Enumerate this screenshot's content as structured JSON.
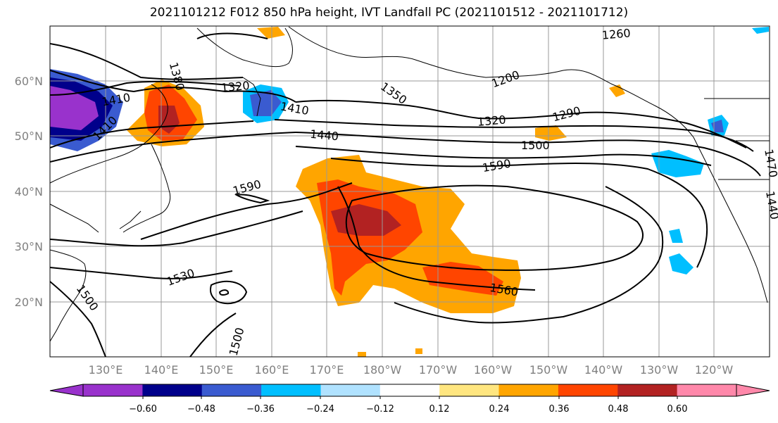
{
  "title": "2021101212 F012 850 hPa height, IVT Landfall PC (2021101512 - 2021101712)",
  "map": {
    "lat_labels": [
      "60°N",
      "50°N",
      "40°N",
      "30°N",
      "20°N"
    ],
    "lon_labels": [
      "130°E",
      "140°E",
      "150°E",
      "160°E",
      "170°E",
      "180°W",
      "170°W",
      "160°W",
      "150°W",
      "140°W",
      "130°W",
      "120°W"
    ],
    "contour_labels": [
      "1380",
      "1410",
      "1410",
      "1410",
      "1320",
      "1350",
      "1200",
      "1260",
      "1290",
      "1320",
      "1440",
      "1500",
      "1590",
      "1590",
      "1470",
      "1440",
      "1530",
      "1500",
      "1500",
      "1560"
    ],
    "colorbar_ticks": [
      "−0.60",
      "−0.48",
      "−0.36",
      "−0.24",
      "−0.12",
      "0.12",
      "0.24",
      "0.36",
      "0.48",
      "0.60"
    ],
    "colorbar_colors": [
      "#9932cc",
      "#00008b",
      "#3a5bd0",
      "#00bfff",
      "#b0e2ff",
      "#ffffff",
      "#ffe680",
      "#ffa500",
      "#ff4500",
      "#b22222",
      "#ff88aa"
    ]
  }
}
